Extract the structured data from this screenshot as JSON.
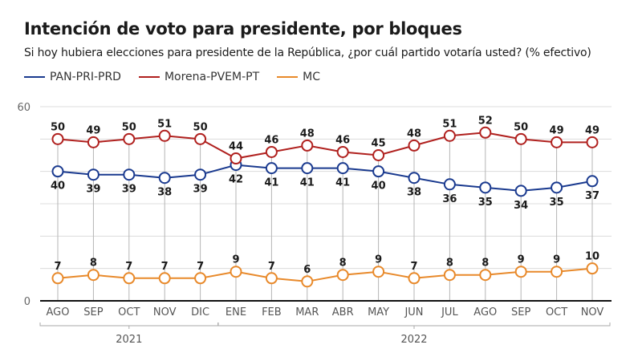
{
  "chart_data": {
    "type": "line",
    "title": "Intención de voto para presidente, por bloques",
    "subtitle": "Si hoy hubiera elecciones para presidente de la República, ¿por cuál partido votaría usted? (% efectivo)",
    "xlabel": "",
    "ylabel": "",
    "ylim": [
      0,
      60
    ],
    "yticks": [
      {
        "value": 60,
        "label": "60"
      },
      {
        "value": 50,
        "label": ""
      },
      {
        "value": 40,
        "label": ""
      },
      {
        "value": 30,
        "label": ""
      },
      {
        "value": 20,
        "label": ""
      },
      {
        "value": 10,
        "label": ""
      },
      {
        "value": 0,
        "label": "0"
      }
    ],
    "grid": true,
    "legend_position": "top-left",
    "x": [
      "AGO",
      "SEP",
      "OCT",
      "NOV",
      "DIC",
      "ENE",
      "FEB",
      "MAR",
      "ABR",
      "MAY",
      "JUN",
      "JUL",
      "AGO",
      "SEP",
      "OCT",
      "NOV"
    ],
    "year_groups": [
      {
        "label": "2021",
        "start": 0,
        "end": 4
      },
      {
        "label": "2022",
        "start": 5,
        "end": 15
      }
    ],
    "series": [
      {
        "name": "PAN-PRI-PRD",
        "color": "#1a3a8f",
        "label_position": "below",
        "values": [
          40,
          39,
          39,
          38,
          39,
          42,
          41,
          41,
          41,
          40,
          38,
          36,
          35,
          34,
          35,
          37
        ]
      },
      {
        "name": "Morena-PVEM-PT",
        "color": "#b0201e",
        "label_position": "above",
        "values": [
          50,
          49,
          50,
          51,
          50,
          44,
          46,
          48,
          46,
          45,
          48,
          51,
          52,
          50,
          49,
          49
        ]
      },
      {
        "name": "MC",
        "color": "#e8892a",
        "label_position": "above",
        "values": [
          7,
          8,
          7,
          7,
          7,
          9,
          7,
          6,
          8,
          9,
          7,
          8,
          8,
          9,
          9,
          10
        ]
      }
    ]
  }
}
